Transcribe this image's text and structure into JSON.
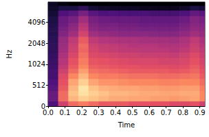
{
  "chart_data": {
    "type": "spectrogram",
    "xlabel": "Time",
    "ylabel": "Hz",
    "xlim": [
      0,
      0.93
    ],
    "xticks": [
      {
        "value": 0,
        "label": "0.0"
      },
      0.1,
      0.2,
      0.3,
      0.4,
      0.5,
      0.6,
      0.7,
      0.8,
      0.9
    ],
    "ylim": [
      0,
      8000
    ],
    "yticks": [
      0,
      512,
      1024,
      2048,
      4096
    ],
    "log": "y",
    "time_edges": [
      0,
      0.06,
      0.12,
      0.18,
      0.24,
      0.3,
      0.36,
      0.42,
      0.48,
      0.54,
      0.6,
      0.66,
      0.72,
      0.78,
      0.84,
      0.9,
      0.93
    ],
    "freq_edges": [
      0,
      128,
      256,
      384,
      512,
      640,
      768,
      896,
      1024,
      1280,
      1536,
      1792,
      2048,
      2560,
      3072,
      3584,
      4096,
      5120,
      6144,
      7168,
      8000
    ],
    "clim": [
      -80,
      0
    ],
    "cells": [
      [
        -60,
        -35,
        -25,
        -22,
        -25,
        -28,
        -28,
        -28,
        -30,
        -30,
        -30,
        -30,
        -32,
        -32,
        -30,
        -35
      ],
      [
        -55,
        -25,
        -12,
        -8,
        -10,
        -12,
        -14,
        -14,
        -15,
        -15,
        -16,
        -16,
        -17,
        -16,
        -15,
        -20
      ],
      [
        -55,
        -25,
        -10,
        -5,
        -8,
        -10,
        -12,
        -12,
        -13,
        -14,
        -14,
        -15,
        -15,
        -14,
        -14,
        -20
      ],
      [
        -58,
        -28,
        -12,
        -4,
        -10,
        -13,
        -14,
        -15,
        -15,
        -16,
        -16,
        -17,
        -17,
        -16,
        -16,
        -22
      ],
      [
        -60,
        -30,
        -15,
        -8,
        -15,
        -18,
        -18,
        -19,
        -20,
        -20,
        -20,
        -21,
        -21,
        -20,
        -20,
        -25
      ],
      [
        -62,
        -32,
        -20,
        -12,
        -20,
        -22,
        -22,
        -23,
        -24,
        -24,
        -24,
        -25,
        -25,
        -24,
        -23,
        -28
      ],
      [
        -62,
        -35,
        -25,
        -16,
        -24,
        -25,
        -26,
        -27,
        -28,
        -28,
        -28,
        -28,
        -29,
        -28,
        -26,
        -30
      ],
      [
        -63,
        -38,
        -28,
        -20,
        -27,
        -28,
        -29,
        -30,
        -30,
        -31,
        -31,
        -31,
        -32,
        -31,
        -28,
        -32
      ],
      [
        -64,
        -40,
        -30,
        -22,
        -29,
        -30,
        -31,
        -32,
        -33,
        -33,
        -33,
        -34,
        -34,
        -33,
        -30,
        -34
      ],
      [
        -65,
        -42,
        -33,
        -24,
        -32,
        -33,
        -34,
        -35,
        -35,
        -36,
        -36,
        -36,
        -37,
        -35,
        -32,
        -36
      ],
      [
        -66,
        -44,
        -35,
        -26,
        -34,
        -36,
        -37,
        -38,
        -38,
        -39,
        -39,
        -39,
        -40,
        -38,
        -35,
        -38
      ],
      [
        -66,
        -45,
        -36,
        -25,
        -35,
        -37,
        -38,
        -39,
        -40,
        -40,
        -40,
        -41,
        -41,
        -40,
        -36,
        -40
      ],
      [
        -67,
        -46,
        -38,
        -28,
        -38,
        -40,
        -41,
        -42,
        -42,
        -43,
        -43,
        -43,
        -44,
        -42,
        -38,
        -42
      ],
      [
        -68,
        -50,
        -44,
        -34,
        -44,
        -46,
        -47,
        -48,
        -48,
        -48,
        -49,
        -49,
        -49,
        -47,
        -44,
        -46
      ],
      [
        -68,
        -52,
        -47,
        -38,
        -48,
        -50,
        -50,
        -51,
        -51,
        -52,
        -52,
        -52,
        -52,
        -50,
        -47,
        -48
      ],
      [
        -69,
        -54,
        -49,
        -40,
        -50,
        -52,
        -52,
        -53,
        -53,
        -54,
        -54,
        -54,
        -54,
        -52,
        -49,
        -50
      ],
      [
        -70,
        -55,
        -52,
        -44,
        -52,
        -54,
        -55,
        -55,
        -55,
        -56,
        -56,
        -56,
        -56,
        -54,
        -50,
        -52
      ],
      [
        -72,
        -60,
        -58,
        -52,
        -58,
        -60,
        -60,
        -61,
        -61,
        -61,
        -62,
        -62,
        -62,
        -60,
        -56,
        -58
      ],
      [
        -74,
        -70,
        -70,
        -66,
        -72,
        -74,
        -75,
        -75,
        -75,
        -76,
        -76,
        -76,
        -76,
        -74,
        -70,
        -72
      ],
      [
        -75,
        -78,
        -80,
        -80,
        -80,
        -80,
        -80,
        -80,
        -80,
        -80,
        -80,
        -80,
        -80,
        -80,
        -80,
        -80
      ]
    ]
  }
}
